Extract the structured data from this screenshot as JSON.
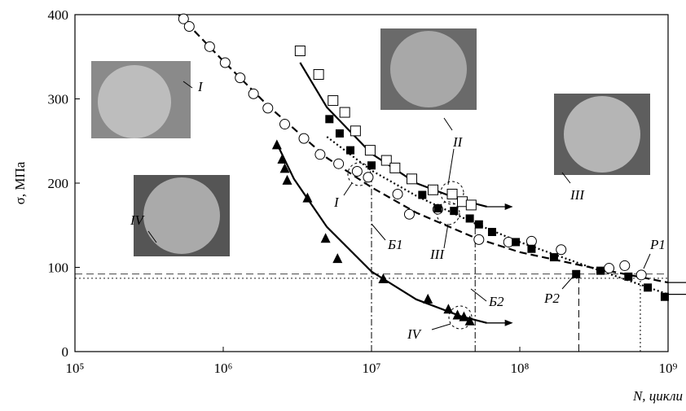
{
  "chart_data": {
    "type": "scatter",
    "xlabel": "N, цикли",
    "ylabel": "σ, МПа",
    "log_x": true,
    "xlim": [
      100000,
      1000000000
    ],
    "xticks": [
      {
        "value": 100000,
        "label": "10⁵"
      },
      {
        "value": 1000000,
        "label": "10⁶"
      },
      {
        "value": 10000000,
        "label": "10⁷"
      },
      {
        "value": 100000000,
        "label": "10⁸"
      },
      {
        "value": 1000000000,
        "label": "10⁹"
      }
    ],
    "ylim": [
      0,
      400
    ],
    "yticks": [
      0,
      100,
      200,
      300,
      400
    ],
    "series": [
      {
        "marker": "circle-open",
        "color": "#000000",
        "x": [
          540000,
          590000,
          810000,
          1030000,
          1300000,
          1600000,
          2000000,
          2600000,
          3500000,
          4500000,
          6000000,
          8000000,
          9500000,
          15000000,
          18000000,
          28000000,
          53000000,
          84000000,
          120000000,
          190000000,
          400000000,
          510000000,
          660000000
        ],
        "values": [
          395,
          386,
          362,
          343,
          325,
          306,
          289,
          270,
          253,
          234,
          223,
          214,
          207,
          187,
          163,
          169,
          133,
          130,
          131,
          121,
          99,
          102,
          91
        ]
      },
      {
        "marker": "square-open",
        "color": "#000000",
        "x": [
          3300000,
          4400000,
          5500000,
          6600000,
          7800000,
          9800000,
          12600000,
          14400000,
          18700000,
          26000000,
          35000000,
          41000000,
          47000000
        ],
        "values": [
          357,
          329,
          298,
          284,
          262,
          239,
          227,
          218,
          205,
          192,
          187,
          178,
          174
        ]
      },
      {
        "marker": "square-filled",
        "color": "#000000",
        "x": [
          5200000,
          6100000,
          7200000,
          10000000,
          22000000,
          28000000,
          36000000,
          46000000,
          53000000,
          65000000,
          94000000,
          120000000,
          170000000,
          240000000,
          350000000,
          540000000,
          730000000,
          950000000
        ],
        "values": [
          276,
          259,
          239,
          221,
          186,
          170,
          167,
          158,
          151,
          142,
          130,
          122,
          112,
          92,
          96,
          89,
          76,
          65
        ]
      },
      {
        "marker": "triangle-filled",
        "color": "#000000",
        "x": [
          2300000,
          2500000,
          2600000,
          2700000,
          3700000,
          4900000,
          5900000,
          12000000,
          24000000,
          33000000,
          38000000,
          42000000,
          46000000
        ],
        "values": [
          245,
          228,
          217,
          203,
          182,
          134,
          110,
          86,
          62,
          50,
          43,
          41,
          36
        ]
      }
    ],
    "curves": [
      {
        "line_style": "dashed",
        "color": "#000000",
        "x": [
          500000,
          1000000,
          2000000,
          5000000,
          10000000,
          20000000,
          50000000,
          100000000,
          300000000,
          1000000000
        ],
        "values": [
          400,
          345,
          292,
          230,
          195,
          165,
          135,
          118,
          100,
          82
        ]
      },
      {
        "line_style": "solid",
        "color": "#000000",
        "x": [
          3300000,
          5000000,
          10000000,
          20000000,
          40000000,
          60000000
        ],
        "values": [
          343,
          290,
          235,
          200,
          180,
          172
        ]
      },
      {
        "line_style": "dotted",
        "color": "#000000",
        "x": [
          5000000,
          10000000,
          20000000,
          50000000,
          100000000,
          300000000,
          1000000000
        ],
        "values": [
          255,
          215,
          185,
          152,
          130,
          100,
          68
        ]
      },
      {
        "line_style": "solid",
        "color": "#000000",
        "x": [
          2300000,
          3000000,
          5000000,
          10000000,
          20000000,
          40000000,
          60000000
        ],
        "values": [
          247,
          205,
          148,
          95,
          62,
          42,
          34
        ]
      }
    ],
    "hlines": [
      {
        "value": 92,
        "line_style": "dashed"
      },
      {
        "value": 87,
        "line_style": "dotted"
      }
    ],
    "vlines": [
      {
        "value": 10000000,
        "line_style": "dashdot",
        "top": 207
      },
      {
        "value": 50000000,
        "line_style": "dashdot",
        "top": 151
      },
      {
        "value": 250000000,
        "line_style": "dashed",
        "top": 92
      },
      {
        "value": 650000000,
        "line_style": "dotted",
        "top": 91
      }
    ],
    "annotations": [
      "I",
      "I",
      "II",
      "III",
      "III",
      "IV",
      "IV",
      "Б1",
      "Б2",
      "Р1",
      "Р2"
    ]
  }
}
